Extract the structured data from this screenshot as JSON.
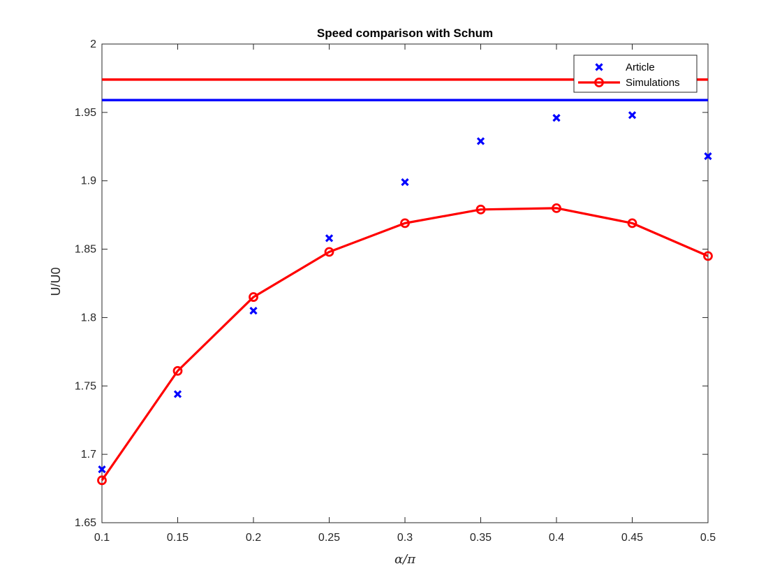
{
  "chart_data": {
    "type": "line",
    "title": "Speed comparison with Schum",
    "xlabel": "α/π",
    "ylabel": "U/U0",
    "xlim": [
      0.1,
      0.5
    ],
    "ylim": [
      1.65,
      2.0
    ],
    "x_ticks": [
      0.1,
      0.15,
      0.2,
      0.25,
      0.3,
      0.35,
      0.4,
      0.45,
      0.5
    ],
    "x_tick_labels": [
      "0.1",
      "0.15",
      "0.2",
      "0.25",
      "0.3",
      "0.35",
      "0.4",
      "0.45",
      "0.5"
    ],
    "y_ticks": [
      1.65,
      1.7,
      1.75,
      1.8,
      1.85,
      1.9,
      1.95,
      2.0
    ],
    "y_tick_labels": [
      "1.65",
      "1.7",
      "1.75",
      "1.8",
      "1.85",
      "1.9",
      "1.95",
      "2"
    ],
    "grid": false,
    "legend_position": "top-right",
    "x": [
      0.1,
      0.15,
      0.2,
      0.25,
      0.3,
      0.35,
      0.4,
      0.45,
      0.5
    ],
    "series": [
      {
        "name": "Article",
        "style": "markers-x",
        "color": "#0000ff",
        "values": [
          1.689,
          1.744,
          1.805,
          1.858,
          1.899,
          1.929,
          1.946,
          1.948,
          1.918
        ]
      },
      {
        "name": "Simulations",
        "style": "line-circle",
        "color": "#ff0000",
        "values": [
          1.681,
          1.761,
          1.815,
          1.848,
          1.869,
          1.879,
          1.88,
          1.869,
          1.845
        ]
      }
    ],
    "reference_lines": [
      {
        "y": 1.974,
        "color": "#ff0000"
      },
      {
        "y": 1.959,
        "color": "#0000ff"
      }
    ]
  }
}
